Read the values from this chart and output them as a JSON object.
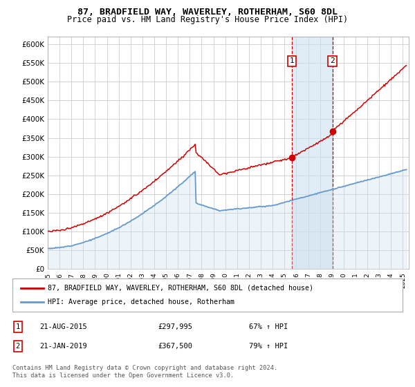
{
  "title1": "87, BRADFIELD WAY, WAVERLEY, ROTHERHAM, S60 8DL",
  "title2": "Price paid vs. HM Land Registry's House Price Index (HPI)",
  "ytick_values": [
    0,
    50000,
    100000,
    150000,
    200000,
    250000,
    300000,
    350000,
    400000,
    450000,
    500000,
    550000,
    600000
  ],
  "xtick_years": [
    1995,
    1996,
    1997,
    1998,
    1999,
    2000,
    2001,
    2002,
    2003,
    2004,
    2005,
    2006,
    2007,
    2008,
    2009,
    2010,
    2011,
    2012,
    2013,
    2014,
    2015,
    2016,
    2017,
    2018,
    2019,
    2020,
    2021,
    2022,
    2023,
    2024,
    2025
  ],
  "red_color": "#cc0000",
  "blue_color": "#6699cc",
  "blue_fill_color": "#cce0f0",
  "grid_color": "#cccccc",
  "bg_color": "#ffffff",
  "marker1_year": 2015.64,
  "marker1_value": 297995,
  "marker2_year": 2019.05,
  "marker2_value": 367500,
  "legend1_text": "87, BRADFIELD WAY, WAVERLEY, ROTHERHAM, S60 8DL (detached house)",
  "legend2_text": "HPI: Average price, detached house, Rotherham",
  "ann1_label": "1",
  "ann1_date": "21-AUG-2015",
  "ann1_price": "£297,995",
  "ann1_hpi": "67% ↑ HPI",
  "ann2_label": "2",
  "ann2_date": "21-JAN-2019",
  "ann2_price": "£367,500",
  "ann2_hpi": "79% ↑ HPI",
  "footer": "Contains HM Land Registry data © Crown copyright and database right 2024.\nThis data is licensed under the Open Government Licence v3.0."
}
